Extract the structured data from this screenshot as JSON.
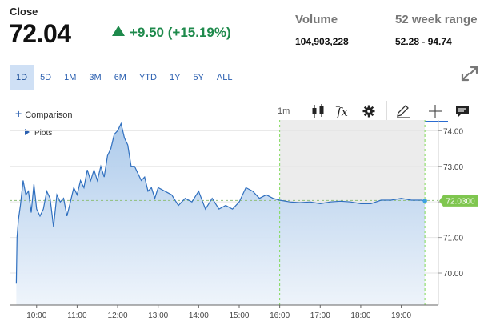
{
  "header": {
    "close_label": "Close",
    "close_price": "72.04",
    "change": "+9.50 (+15.19%)",
    "change_color": "#1f8a4c",
    "volume_label": "Volume",
    "volume_value": "104,903,228",
    "range_label": "52 week range",
    "range_value": "52.28 - 94.74"
  },
  "tabs": [
    {
      "label": "1D",
      "active": true
    },
    {
      "label": "5D"
    },
    {
      "label": "1M"
    },
    {
      "label": "3M"
    },
    {
      "label": "6M"
    },
    {
      "label": "YTD"
    },
    {
      "label": "1Y"
    },
    {
      "label": "5Y"
    },
    {
      "label": "ALL"
    }
  ],
  "toolbar": {
    "comparison_label": "Comparison",
    "plots_label": "Plots",
    "interval_label": "1m",
    "icons": [
      "candlestick-icon",
      "function-fx-icon",
      "gear-icon",
      "pencil-icon",
      "crosshair-icon",
      "comment-icon",
      "expand-icon"
    ]
  },
  "chart_data": {
    "type": "area",
    "x_ticks": [
      "10:00",
      "11:00",
      "12:00",
      "13:00",
      "14:00",
      "15:00",
      "16:00",
      "17:00",
      "18:00",
      "19:00"
    ],
    "y_ticks": [
      "74.00",
      "73.00",
      "72.00",
      "71.00",
      "70.00"
    ],
    "ylim": [
      69.1,
      74.3
    ],
    "last_value_label": "72.0300",
    "last_value": 72.03,
    "reference_line": 72.04,
    "after_hours_range": [
      "16:00",
      "19:35"
    ],
    "line_color": "#2f6fbf",
    "fill_color": "#cddff2",
    "accent_color": "#7ed957",
    "series": [
      {
        "x": [
          "09:30",
          "09:31",
          "09:33",
          "09:36",
          "09:40",
          "09:44",
          "09:48",
          "09:52",
          "09:56",
          "10:00",
          "10:05",
          "10:10",
          "10:15",
          "10:20",
          "10:25",
          "10:30",
          "10:35",
          "10:40",
          "10:45",
          "10:50",
          "10:55",
          "11:00",
          "11:05",
          "11:10",
          "11:15",
          "11:20",
          "11:25",
          "11:30",
          "11:35",
          "11:40",
          "11:45",
          "11:50",
          "11:55",
          "12:00",
          "12:05",
          "12:10",
          "12:15",
          "12:20",
          "12:25",
          "12:30",
          "12:35",
          "12:40",
          "12:45",
          "12:50",
          "12:55",
          "13:00",
          "13:10",
          "13:20",
          "13:30",
          "13:40",
          "13:50",
          "14:00",
          "14:10",
          "14:20",
          "14:30",
          "14:40",
          "14:50",
          "15:00",
          "15:10",
          "15:20",
          "15:30",
          "15:40",
          "15:50",
          "16:00",
          "16:15",
          "16:30",
          "16:45",
          "17:00",
          "17:15",
          "17:30",
          "17:45",
          "18:00",
          "18:15",
          "18:30",
          "18:45",
          "19:00",
          "19:15",
          "19:30",
          "19:35"
        ],
        "y": [
          69.7,
          71.0,
          71.5,
          71.9,
          72.6,
          72.2,
          72.3,
          71.7,
          72.5,
          71.8,
          71.6,
          71.8,
          72.3,
          72.1,
          71.3,
          72.2,
          72.0,
          72.1,
          71.6,
          72.0,
          72.4,
          72.2,
          72.6,
          72.4,
          72.9,
          72.6,
          72.9,
          72.6,
          73.0,
          72.7,
          73.3,
          73.5,
          73.9,
          74.0,
          74.2,
          73.8,
          73.6,
          73.0,
          73.0,
          72.8,
          72.6,
          72.7,
          72.3,
          72.4,
          72.1,
          72.4,
          72.3,
          72.2,
          71.9,
          72.1,
          72.0,
          72.3,
          71.8,
          72.1,
          71.8,
          71.9,
          71.8,
          72.0,
          72.4,
          72.3,
          72.1,
          72.2,
          72.1,
          72.05,
          72.0,
          71.98,
          72.0,
          71.95,
          72.0,
          72.02,
          72.0,
          71.95,
          71.95,
          72.05,
          72.05,
          72.1,
          72.05,
          72.05,
          72.03
        ]
      }
    ]
  }
}
